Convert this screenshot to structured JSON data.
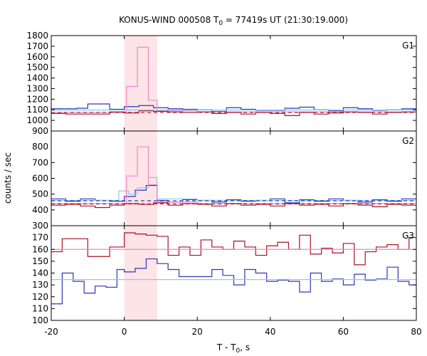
{
  "chart_data": {
    "type": "line",
    "title": "KONUS-WIND 000508 T",
    "title_sub": "0",
    "title_rest": " = 77419s UT (21:30:19.000)",
    "xlabel_main": "T - T",
    "xlabel_sub": "0",
    "xlabel_rest": ", s",
    "ylabel": "counts / sec",
    "xlim": [
      -20,
      80
    ],
    "xticks": [
      -20,
      0,
      20,
      40,
      60,
      80
    ],
    "xtick_labels": [
      "-20",
      "0",
      "20",
      "40",
      "60",
      "80"
    ],
    "highlight_interval": [
      0,
      9
    ],
    "grid": false,
    "panels": [
      {
        "label": "G1",
        "ylim": [
          900,
          1800
        ],
        "yticks": [
          900,
          1000,
          1100,
          1200,
          1300,
          1400,
          1500,
          1600,
          1700,
          1800
        ],
        "ytick_labels": [
          "900",
          "1000",
          "1100",
          "1200",
          "1300",
          "1400",
          "1500",
          "1600",
          "1700",
          "1800"
        ],
        "series": [
          {
            "color": "#3333bb",
            "edges": [
              -20,
              -16,
              -13,
              -10,
              -4,
              0,
              4,
              8,
              12,
              16,
              20,
              24,
              28,
              32,
              36,
              40,
              44,
              48,
              52,
              56,
              60,
              64,
              68,
              72,
              76,
              80
            ],
            "values": [
              1110,
              1110,
              1115,
              1155,
              1105,
              1130,
              1140,
              1120,
              1110,
              1105,
              1100,
              1085,
              1120,
              1105,
              1095,
              1095,
              1115,
              1125,
              1100,
              1090,
              1120,
              1110,
              1095,
              1100,
              1110
            ]
          },
          {
            "color": "#ee88cc",
            "edges": [
              -20,
              -4,
              0,
              0.6,
              3.6,
              6.6,
              9,
              20,
              40,
              80
            ],
            "values": [
              1075,
              1075,
              1080,
              1320,
              1690,
              1190,
              1090,
              1080,
              1080
            ]
          },
          {
            "color": "#aa1122",
            "edges": [
              -20,
              -16,
              -10,
              -4,
              0,
              4,
              8,
              12,
              16,
              20,
              24,
              28,
              32,
              36,
              40,
              44,
              48,
              52,
              56,
              60,
              64,
              68,
              72,
              76,
              80
            ],
            "values": [
              1065,
              1060,
              1060,
              1080,
              1070,
              1090,
              1085,
              1080,
              1075,
              1080,
              1065,
              1075,
              1060,
              1075,
              1065,
              1045,
              1075,
              1060,
              1070,
              1080,
              1075,
              1060,
              1075,
              1080
            ]
          },
          {
            "color": "#88ccee",
            "edges": [
              -20,
              80
            ],
            "values": [
              1098
            ]
          },
          {
            "color": "#aa1122",
            "dashed": true,
            "edges": [
              -20,
              80
            ],
            "values": [
              1075
            ]
          }
        ]
      },
      {
        "label": "G2",
        "ylim": [
          300,
          900
        ],
        "yticks": [
          300,
          400,
          500,
          600,
          700,
          800
        ],
        "ytick_labels": [
          "300",
          "400",
          "500",
          "600",
          "700",
          "800"
        ],
        "series": [
          {
            "color": "#3333bb",
            "edges": [
              -20,
              -16,
              -12,
              -8,
              -4,
              0,
              3,
              6,
              9,
              12,
              16,
              20,
              24,
              28,
              32,
              36,
              40,
              44,
              48,
              52,
              56,
              60,
              64,
              68,
              72,
              76,
              80
            ],
            "values": [
              470,
              455,
              470,
              460,
              455,
              485,
              525,
              555,
              460,
              450,
              465,
              460,
              450,
              465,
              455,
              460,
              470,
              445,
              465,
              455,
              470,
              460,
              450,
              465,
              455,
              470
            ]
          },
          {
            "color": "#88ccee",
            "edges": [
              -20,
              -4,
              -1.5,
              1.2,
              3.6,
              6.6,
              9,
              20,
              40,
              80
            ],
            "values": [
              460,
              460,
              520,
              500,
              540,
              605,
              470,
              460,
              460
            ]
          },
          {
            "color": "#ee88cc",
            "edges": [
              -20,
              -4,
              0,
              0.6,
              3.6,
              6.6,
              9,
              20,
              40,
              80
            ],
            "values": [
              440,
              440,
              440,
              615,
              800,
              560,
              450,
              440,
              440
            ]
          },
          {
            "color": "#aa1122",
            "edges": [
              -20,
              -16,
              -12,
              -8,
              -4,
              0,
              4,
              8,
              12,
              16,
              20,
              24,
              28,
              32,
              36,
              40,
              44,
              48,
              52,
              56,
              60,
              64,
              68,
              72,
              76,
              80
            ],
            "values": [
              430,
              435,
              425,
              415,
              430,
              440,
              435,
              445,
              430,
              440,
              435,
              425,
              440,
              430,
              435,
              425,
              440,
              430,
              435,
              425,
              440,
              430,
              420,
              435,
              430
            ]
          },
          {
            "color": "#3333bb",
            "dashed": true,
            "edges": [
              -20,
              80
            ],
            "values": [
              458
            ]
          },
          {
            "color": "#aa1122",
            "dashed": true,
            "edges": [
              -20,
              80
            ],
            "values": [
              438
            ]
          }
        ]
      },
      {
        "label": "G3",
        "ylim": [
          100,
          180
        ],
        "yticks": [
          100,
          110,
          120,
          130,
          140,
          150,
          160,
          170
        ],
        "ytick_labels": [
          "100",
          "110",
          "120",
          "130",
          "140",
          "150",
          "160",
          "170"
        ],
        "series": [
          {
            "color": "#aa1122",
            "edges": [
              -20,
              -17,
              -10,
              -4,
              -3,
              0,
              3,
              6,
              9,
              12,
              15,
              18,
              21,
              24,
              27,
              30,
              33,
              36,
              39,
              42,
              45,
              48,
              51,
              54,
              57,
              60,
              63,
              66,
              69,
              72,
              75,
              78,
              80
            ],
            "values": [
              158,
              169,
              154,
              162,
              162,
              174,
              173,
              172,
              171,
              155,
              162,
              155,
              168,
              162,
              160,
              167,
              162,
              155,
              163,
              166,
              160,
              172,
              156,
              161,
              157,
              165,
              147,
              158,
              162,
              164,
              160,
              170
            ]
          },
          {
            "color": "#3333bb",
            "edges": [
              -20,
              -17,
              -14,
              -11,
              -8,
              -5,
              -2,
              0,
              3,
              6,
              9,
              12,
              15,
              18,
              21,
              24,
              27,
              30,
              33,
              36,
              39,
              42,
              45,
              48,
              51,
              54,
              57,
              60,
              63,
              66,
              69,
              72,
              75,
              78,
              80
            ],
            "values": [
              114,
              140,
              133,
              123,
              129,
              128,
              143,
              141,
              144,
              152,
              148,
              143,
              137,
              137,
              137,
              143,
              138,
              130,
              143,
              140,
              133,
              134,
              133,
              124,
              140,
              133,
              135,
              130,
              139,
              134,
              135,
              145,
              133,
              130
            ]
          },
          {
            "color": "#ee88cc",
            "edges": [
              -20,
              80
            ],
            "values": [
              160
            ]
          },
          {
            "color": "#88ccee",
            "edges": [
              -20,
              80
            ],
            "values": [
              134.5
            ]
          }
        ]
      }
    ]
  }
}
